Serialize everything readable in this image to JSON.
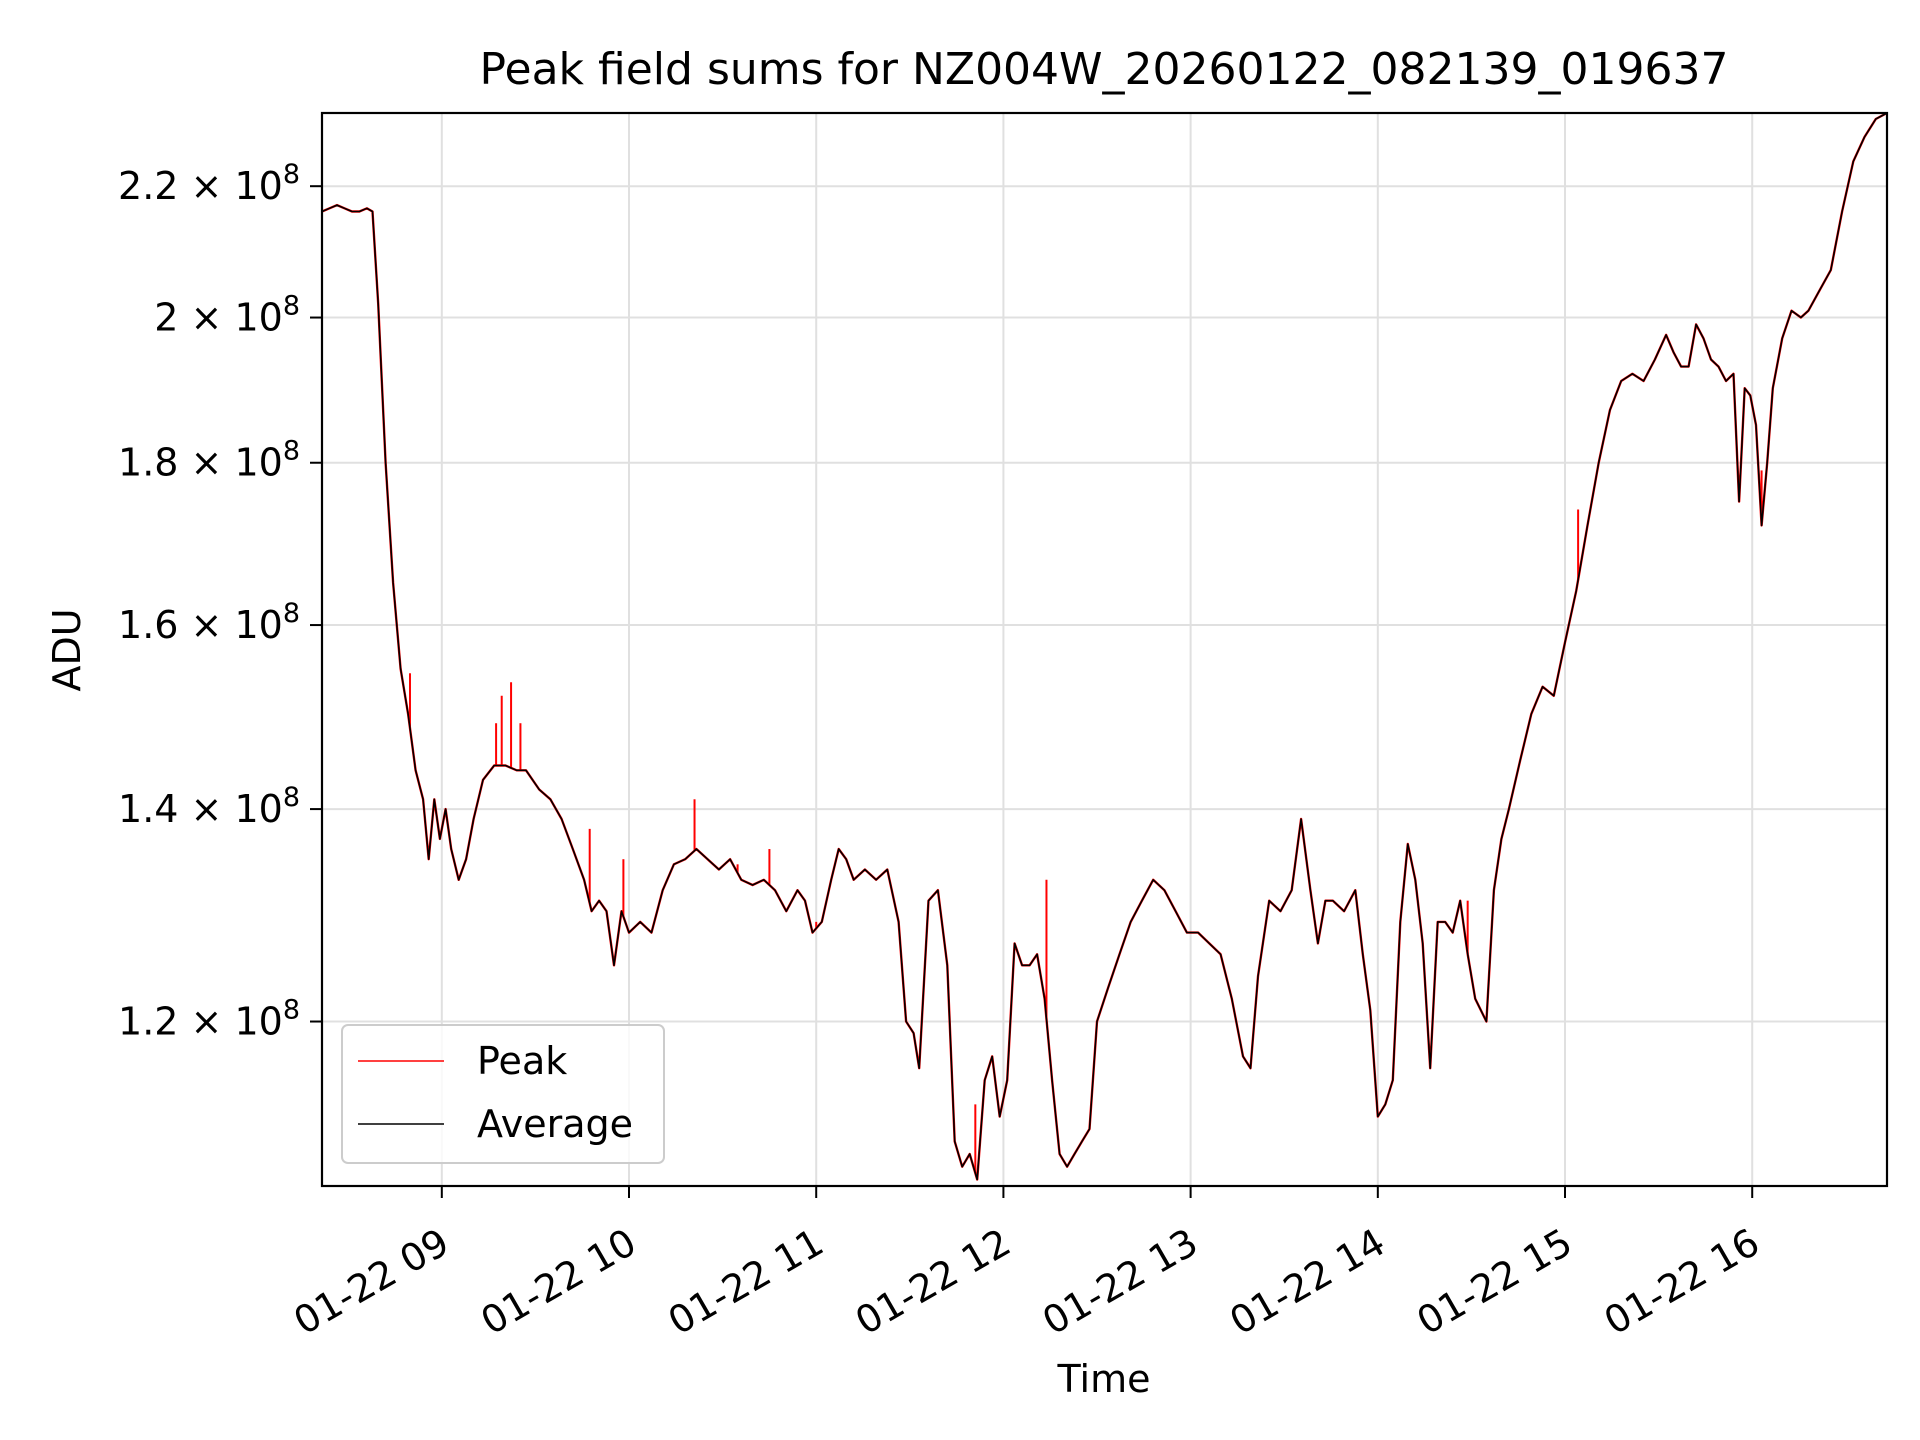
{
  "chart_data": {
    "type": "line",
    "title": "Peak field sums for NZ004W_20260122_082139_019637",
    "xlabel": "Time",
    "ylabel": "ADU",
    "grid": true,
    "legend_position": "lower-left",
    "x_unit": "hour",
    "xlim": [
      8.36,
      16.72
    ],
    "ylim": [
      106500000.0,
      232000000.0
    ],
    "y_scale": "log",
    "x_ticks": [
      {
        "value": 9,
        "label": "01-22 09"
      },
      {
        "value": 10,
        "label": "01-22 10"
      },
      {
        "value": 11,
        "label": "01-22 11"
      },
      {
        "value": 12,
        "label": "01-22 12"
      },
      {
        "value": 13,
        "label": "01-22 13"
      },
      {
        "value": 14,
        "label": "01-22 14"
      },
      {
        "value": 15,
        "label": "01-22 15"
      },
      {
        "value": 16,
        "label": "01-22 16"
      }
    ],
    "y_ticks": [
      {
        "value": 120000000.0,
        "mantissa": "1.2",
        "label": "1.2 × 10^8"
      },
      {
        "value": 140000000.0,
        "mantissa": "1.4",
        "label": "1.4 × 10^8"
      },
      {
        "value": 160000000.0,
        "mantissa": "1.6",
        "label": "1.6 × 10^8"
      },
      {
        "value": 180000000.0,
        "mantissa": "1.8",
        "label": "1.8 × 10^8"
      },
      {
        "value": 200000000.0,
        "mantissa": "2",
        "label": "2 × 10^8"
      },
      {
        "value": 220000000.0,
        "mantissa": "2.2",
        "label": "2.2 × 10^8"
      }
    ],
    "tick_base_text": "10",
    "tick_exponent_text": "8",
    "tick_times_text": "×",
    "series": [
      {
        "name": "Peak",
        "color": "#ff0000"
      },
      {
        "name": "Average",
        "color": "#000000"
      }
    ],
    "average_points": [
      [
        8.36,
        216000000.0
      ],
      [
        8.4,
        216500000.0
      ],
      [
        8.44,
        217000000.0
      ],
      [
        8.48,
        216500000.0
      ],
      [
        8.52,
        216000000.0
      ],
      [
        8.56,
        216000000.0
      ],
      [
        8.6,
        216500000.0
      ],
      [
        8.63,
        216000000.0
      ],
      [
        8.66,
        202000000.0
      ],
      [
        8.7,
        180000000.0
      ],
      [
        8.74,
        165000000.0
      ],
      [
        8.78,
        155000000.0
      ],
      [
        8.82,
        150000000.0
      ],
      [
        8.86,
        144000000.0
      ],
      [
        8.9,
        141000000.0
      ],
      [
        8.93,
        135000000.0
      ],
      [
        8.96,
        141000000.0
      ],
      [
        8.99,
        137000000.0
      ],
      [
        9.02,
        140000000.0
      ],
      [
        9.05,
        136000000.0
      ],
      [
        9.09,
        133000000.0
      ],
      [
        9.13,
        135000000.0
      ],
      [
        9.17,
        139000000.0
      ],
      [
        9.22,
        143000000.0
      ],
      [
        9.28,
        144500000.0
      ],
      [
        9.34,
        144500000.0
      ],
      [
        9.4,
        144000000.0
      ],
      [
        9.45,
        144000000.0
      ],
      [
        9.52,
        142000000.0
      ],
      [
        9.58,
        141000000.0
      ],
      [
        9.64,
        139000000.0
      ],
      [
        9.7,
        136000000.0
      ],
      [
        9.76,
        133000000.0
      ],
      [
        9.8,
        130000000.0
      ],
      [
        9.84,
        131000000.0
      ],
      [
        9.88,
        130000000.0
      ],
      [
        9.92,
        125000000.0
      ],
      [
        9.96,
        130000000.0
      ],
      [
        10.0,
        128000000.0
      ],
      [
        10.06,
        129000000.0
      ],
      [
        10.12,
        128000000.0
      ],
      [
        10.18,
        132000000.0
      ],
      [
        10.24,
        134500000.0
      ],
      [
        10.3,
        135000000.0
      ],
      [
        10.36,
        136000000.0
      ],
      [
        10.42,
        135000000.0
      ],
      [
        10.48,
        134000000.0
      ],
      [
        10.54,
        135000000.0
      ],
      [
        10.6,
        133000000.0
      ],
      [
        10.66,
        132500000.0
      ],
      [
        10.72,
        133000000.0
      ],
      [
        10.78,
        132000000.0
      ],
      [
        10.84,
        130000000.0
      ],
      [
        10.9,
        132000000.0
      ],
      [
        10.94,
        131000000.0
      ],
      [
        10.98,
        128000000.0
      ],
      [
        11.03,
        129000000.0
      ],
      [
        11.08,
        133000000.0
      ],
      [
        11.12,
        136000000.0
      ],
      [
        11.16,
        135000000.0
      ],
      [
        11.2,
        133000000.0
      ],
      [
        11.26,
        134000000.0
      ],
      [
        11.32,
        133000000.0
      ],
      [
        11.38,
        134000000.0
      ],
      [
        11.44,
        129000000.0
      ],
      [
        11.48,
        120000000.0
      ],
      [
        11.52,
        119000000.0
      ],
      [
        11.55,
        116000000.0
      ],
      [
        11.6,
        131000000.0
      ],
      [
        11.65,
        132000000.0
      ],
      [
        11.7,
        125000000.0
      ],
      [
        11.74,
        110000000.0
      ],
      [
        11.78,
        108000000.0
      ],
      [
        11.82,
        109000000.0
      ],
      [
        11.86,
        107000000.0
      ],
      [
        11.9,
        115000000.0
      ],
      [
        11.94,
        117000000.0
      ],
      [
        11.98,
        112000000.0
      ],
      [
        12.02,
        115000000.0
      ],
      [
        12.06,
        127000000.0
      ],
      [
        12.1,
        125000000.0
      ],
      [
        12.14,
        125000000.0
      ],
      [
        12.18,
        126000000.0
      ],
      [
        12.22,
        122000000.0
      ],
      [
        12.26,
        115000000.0
      ],
      [
        12.3,
        109000000.0
      ],
      [
        12.34,
        108000000.0
      ],
      [
        12.38,
        109000000.0
      ],
      [
        12.42,
        110000000.0
      ],
      [
        12.46,
        111000000.0
      ],
      [
        12.5,
        120000000.0
      ],
      [
        12.56,
        123000000.0
      ],
      [
        12.62,
        126000000.0
      ],
      [
        12.68,
        129000000.0
      ],
      [
        12.74,
        131000000.0
      ],
      [
        12.8,
        133000000.0
      ],
      [
        12.86,
        132000000.0
      ],
      [
        12.92,
        130000000.0
      ],
      [
        12.98,
        128000000.0
      ],
      [
        13.04,
        128000000.0
      ],
      [
        13.1,
        127000000.0
      ],
      [
        13.16,
        126000000.0
      ],
      [
        13.22,
        122000000.0
      ],
      [
        13.28,
        117000000.0
      ],
      [
        13.32,
        116000000.0
      ],
      [
        13.36,
        124000000.0
      ],
      [
        13.42,
        131000000.0
      ],
      [
        13.48,
        130000000.0
      ],
      [
        13.54,
        132000000.0
      ],
      [
        13.59,
        139000000.0
      ],
      [
        13.64,
        132000000.0
      ],
      [
        13.68,
        127000000.0
      ],
      [
        13.72,
        131000000.0
      ],
      [
        13.76,
        131000000.0
      ],
      [
        13.82,
        130000000.0
      ],
      [
        13.88,
        132000000.0
      ],
      [
        13.92,
        126000000.0
      ],
      [
        13.96,
        121000000.0
      ],
      [
        14.0,
        112000000.0
      ],
      [
        14.04,
        113000000.0
      ],
      [
        14.08,
        115000000.0
      ],
      [
        14.12,
        129000000.0
      ],
      [
        14.16,
        136500000.0
      ],
      [
        14.2,
        133000000.0
      ],
      [
        14.24,
        127000000.0
      ],
      [
        14.28,
        116000000.0
      ],
      [
        14.32,
        129000000.0
      ],
      [
        14.36,
        129000000.0
      ],
      [
        14.4,
        128000000.0
      ],
      [
        14.44,
        131000000.0
      ],
      [
        14.48,
        126000000.0
      ],
      [
        14.52,
        122000000.0
      ],
      [
        14.58,
        120000000.0
      ],
      [
        14.62,
        132000000.0
      ],
      [
        14.66,
        137000000.0
      ],
      [
        14.7,
        140000000.0
      ],
      [
        14.76,
        145000000.0
      ],
      [
        14.82,
        150000000.0
      ],
      [
        14.88,
        153000000.0
      ],
      [
        14.94,
        152000000.0
      ],
      [
        15.0,
        158000000.0
      ],
      [
        15.06,
        164000000.0
      ],
      [
        15.12,
        172000000.0
      ],
      [
        15.18,
        180000000.0
      ],
      [
        15.24,
        187000000.0
      ],
      [
        15.3,
        191000000.0
      ],
      [
        15.36,
        192000000.0
      ],
      [
        15.42,
        191000000.0
      ],
      [
        15.48,
        194000000.0
      ],
      [
        15.54,
        197500000.0
      ],
      [
        15.58,
        195000000.0
      ],
      [
        15.62,
        193000000.0
      ],
      [
        15.66,
        193000000.0
      ],
      [
        15.7,
        199000000.0
      ],
      [
        15.74,
        197000000.0
      ],
      [
        15.78,
        194000000.0
      ],
      [
        15.82,
        193000000.0
      ],
      [
        15.86,
        191000000.0
      ],
      [
        15.9,
        192000000.0
      ],
      [
        15.93,
        175000000.0
      ],
      [
        15.96,
        190000000.0
      ],
      [
        15.99,
        189000000.0
      ],
      [
        16.02,
        185000000.0
      ],
      [
        16.05,
        172000000.0
      ],
      [
        16.08,
        180000000.0
      ],
      [
        16.11,
        190000000.0
      ],
      [
        16.16,
        197000000.0
      ],
      [
        16.21,
        201000000.0
      ],
      [
        16.26,
        200000000.0
      ],
      [
        16.3,
        201000000.0
      ],
      [
        16.36,
        204000000.0
      ],
      [
        16.42,
        207000000.0
      ],
      [
        16.48,
        216000000.0
      ],
      [
        16.54,
        224000000.0
      ],
      [
        16.6,
        228000000.0
      ],
      [
        16.66,
        231000000.0
      ],
      [
        16.72,
        232000000.0
      ]
    ],
    "peak_spikes": [
      {
        "x": 8.83,
        "y": 154500000.0
      },
      {
        "x": 9.29,
        "y": 149000000.0
      },
      {
        "x": 9.32,
        "y": 152000000.0
      },
      {
        "x": 9.37,
        "y": 153500000.0
      },
      {
        "x": 9.42,
        "y": 149000000.0
      },
      {
        "x": 9.79,
        "y": 138000000.0
      },
      {
        "x": 9.97,
        "y": 135000000.0
      },
      {
        "x": 10.35,
        "y": 141000000.0
      },
      {
        "x": 10.58,
        "y": 134500000.0
      },
      {
        "x": 10.75,
        "y": 136000000.0
      },
      {
        "x": 11.0,
        "y": 129000000.0
      },
      {
        "x": 11.85,
        "y": 113000000.0
      },
      {
        "x": 12.23,
        "y": 133000000.0
      },
      {
        "x": 14.48,
        "y": 131000000.0
      },
      {
        "x": 15.07,
        "y": 174000000.0
      },
      {
        "x": 16.05,
        "y": 179000000.0
      }
    ]
  },
  "legend": {
    "peak_label": "Peak",
    "average_label": "Average"
  }
}
